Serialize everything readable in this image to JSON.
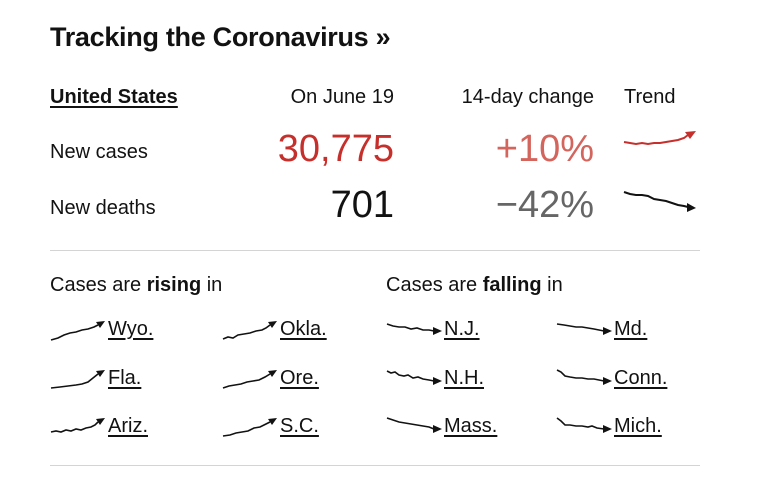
{
  "header": {
    "title": "Tracking the Coronavirus »"
  },
  "summary": {
    "country": "United States",
    "date_label": "On June 19",
    "change_label": "14-day change",
    "trend_label": "Trend",
    "rows": [
      {
        "label": "New cases",
        "value": "30,775",
        "change": "+10%",
        "value_color": "#c6302c",
        "change_color": "#d3655d",
        "trend_icon": "rising-trend-icon",
        "trend_direction": "up"
      },
      {
        "label": "New deaths",
        "value": "701",
        "change": "−42%",
        "value_color": "#121212",
        "change_color": "#666666",
        "trend_icon": "falling-trend-icon",
        "trend_direction": "down"
      }
    ]
  },
  "rising": {
    "prefix": "Cases are ",
    "bold": "rising",
    "suffix": " in",
    "states": [
      "Wyo.",
      "Okla.",
      "Fla.",
      "Ore.",
      "Ariz.",
      "S.C."
    ]
  },
  "falling": {
    "prefix": "Cases are ",
    "bold": "falling",
    "suffix": " in",
    "states": [
      "N.J.",
      "Md.",
      "N.H.",
      "Conn.",
      "Mass.",
      "Mich."
    ]
  }
}
